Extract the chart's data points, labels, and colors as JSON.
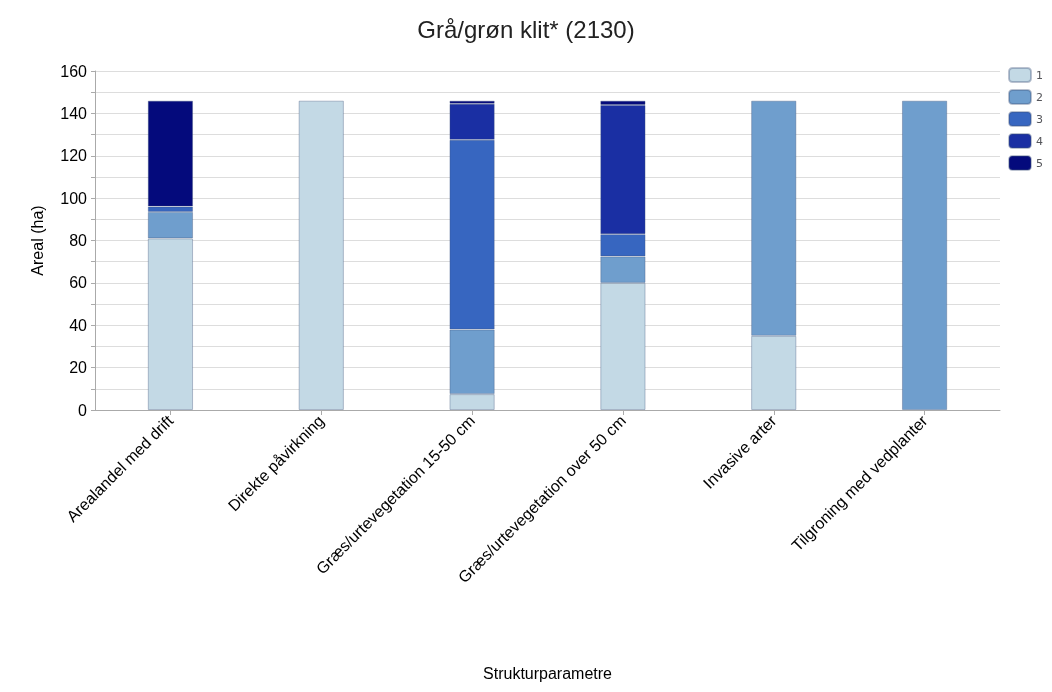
{
  "chart_data": {
    "type": "bar",
    "title": "Grå/grøn klit* (2130)",
    "xlabel": "Strukturparametre",
    "ylabel": "Areal (ha)",
    "categories": [
      "Arealandel med drift",
      "Direkte påvirkning",
      "Græs/urtevegetation 15-50 cm",
      "Græs/urtevegetation over 50 cm",
      "Invasive arter",
      "Tilgroning med vedplanter"
    ],
    "stacked": true,
    "series": [
      {
        "name": "1",
        "color": "#c3d9e5",
        "values": [
          81,
          146,
          7.5,
          60,
          35,
          0
        ]
      },
      {
        "name": "2",
        "color": "#6f9ecd",
        "values": [
          12.5,
          0,
          30.5,
          12.5,
          111,
          146
        ]
      },
      {
        "name": "3",
        "color": "#3766c0",
        "values": [
          2.5,
          0,
          89.5,
          10.5,
          0,
          0
        ]
      },
      {
        "name": "4",
        "color": "#1a2fa3",
        "values": [
          0,
          0,
          17,
          61,
          0,
          0
        ]
      },
      {
        "name": "5",
        "color": "#040a7c",
        "values": [
          50,
          0,
          1.5,
          2,
          0,
          0
        ]
      }
    ],
    "ylim": [
      0,
      160
    ],
    "yticks": [
      0,
      {
        "value": 10,
        "label": null
      },
      20,
      {
        "value": 30,
        "label": null
      },
      40,
      {
        "value": 50,
        "label": null
      },
      60,
      {
        "value": 70,
        "label": null
      },
      80,
      {
        "value": 90,
        "label": null
      },
      100,
      {
        "value": 110,
        "label": null
      },
      120,
      {
        "value": 130,
        "label": null
      },
      140,
      {
        "value": 150,
        "label": null
      },
      160
    ],
    "grid": "y",
    "legend": "top right"
  }
}
